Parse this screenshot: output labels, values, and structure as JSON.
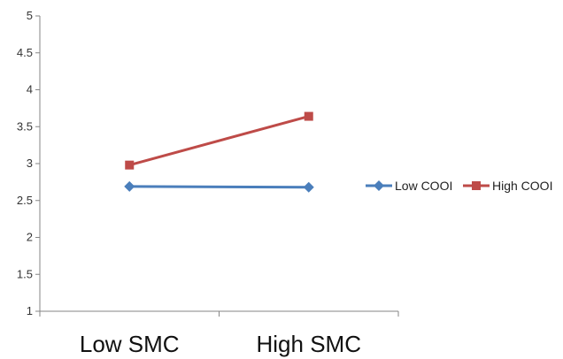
{
  "chart_data": {
    "type": "line",
    "categories": [
      "Low SMC",
      "High SMC"
    ],
    "series": [
      {
        "name": "Low COOI",
        "values": [
          2.69,
          2.68
        ],
        "color": "#4A7EBB",
        "marker": "diamond"
      },
      {
        "name": "High COOI",
        "values": [
          2.98,
          3.64
        ],
        "color": "#BE4B48",
        "marker": "square"
      }
    ],
    "title": "",
    "xlabel": "",
    "ylabel": "",
    "ylim": [
      1,
      5
    ],
    "yticks": [
      "1",
      "1.5",
      "2",
      "2.5",
      "3",
      "3.5",
      "4",
      "4.5",
      "5"
    ],
    "grid": false,
    "legend_position": "right"
  }
}
